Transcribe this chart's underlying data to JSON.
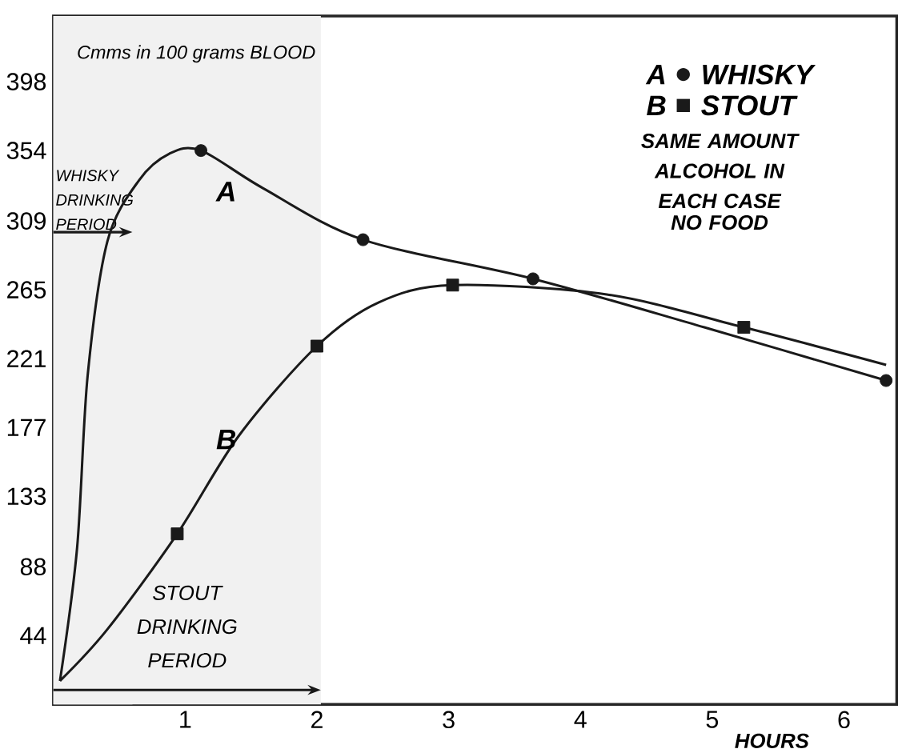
{
  "chart_data": {
    "type": "line",
    "xlabel": "HOURS",
    "ylabel": "Cmms in 100 grams BLOOD",
    "xlim": [
      0,
      6.4
    ],
    "ylim": [
      0,
      440
    ],
    "xticks": [
      1,
      2,
      3,
      4,
      5,
      6
    ],
    "yticks": [
      44,
      88,
      133,
      177,
      221,
      265,
      309,
      354,
      398
    ],
    "series": [
      {
        "type": "line",
        "color": "#1a1a1a",
        "x": [
          0.05,
          0.18,
          0.26,
          0.41,
          0.65,
          0.88,
          1.12,
          1.59,
          2.35,
          3.64,
          4.94,
          6.32
        ],
        "values": [
          15,
          100,
          210,
          296,
          335,
          352,
          354,
          330,
          297,
          272,
          241,
          207
        ]
      },
      {
        "type": "line",
        "color": "#1a1a1a",
        "x": [
          0.05,
          0.41,
          0.94,
          1.41,
          2.0,
          2.47,
          3.03,
          4.2,
          5.24,
          6.32
        ],
        "values": [
          15,
          48,
          109,
          172,
          229,
          257,
          268,
          262,
          241,
          217
        ]
      },
      {
        "type": "scatter",
        "name": "WHISKY",
        "marker": "circle",
        "color": "#1a1a1a",
        "x": [
          1.12,
          2.35,
          3.64,
          6.32
        ],
        "values": [
          354,
          297,
          272,
          207
        ]
      },
      {
        "type": "scatter",
        "name": "STOUT",
        "marker": "square",
        "color": "#1a1a1a",
        "x": [
          0.94,
          2.0,
          3.03,
          5.24
        ],
        "values": [
          109,
          229,
          268,
          241
        ]
      }
    ],
    "legend": "top right",
    "bands": [
      {
        "axis": "x",
        "from": 0,
        "to": 0.6,
        "label": "WHISKY DRINKING PERIOD",
        "color": "#f1f1f1"
      },
      {
        "axis": "x",
        "from": 0,
        "to": 2.03,
        "label": "STOUT DRINKING PERIOD",
        "color": "#f1f1f1"
      }
    ],
    "annotations": [
      "A",
      "B",
      "A",
      "B",
      "SAME AMOUNT ALCOHOL IN EACH CASE",
      "NO FOOD"
    ]
  }
}
